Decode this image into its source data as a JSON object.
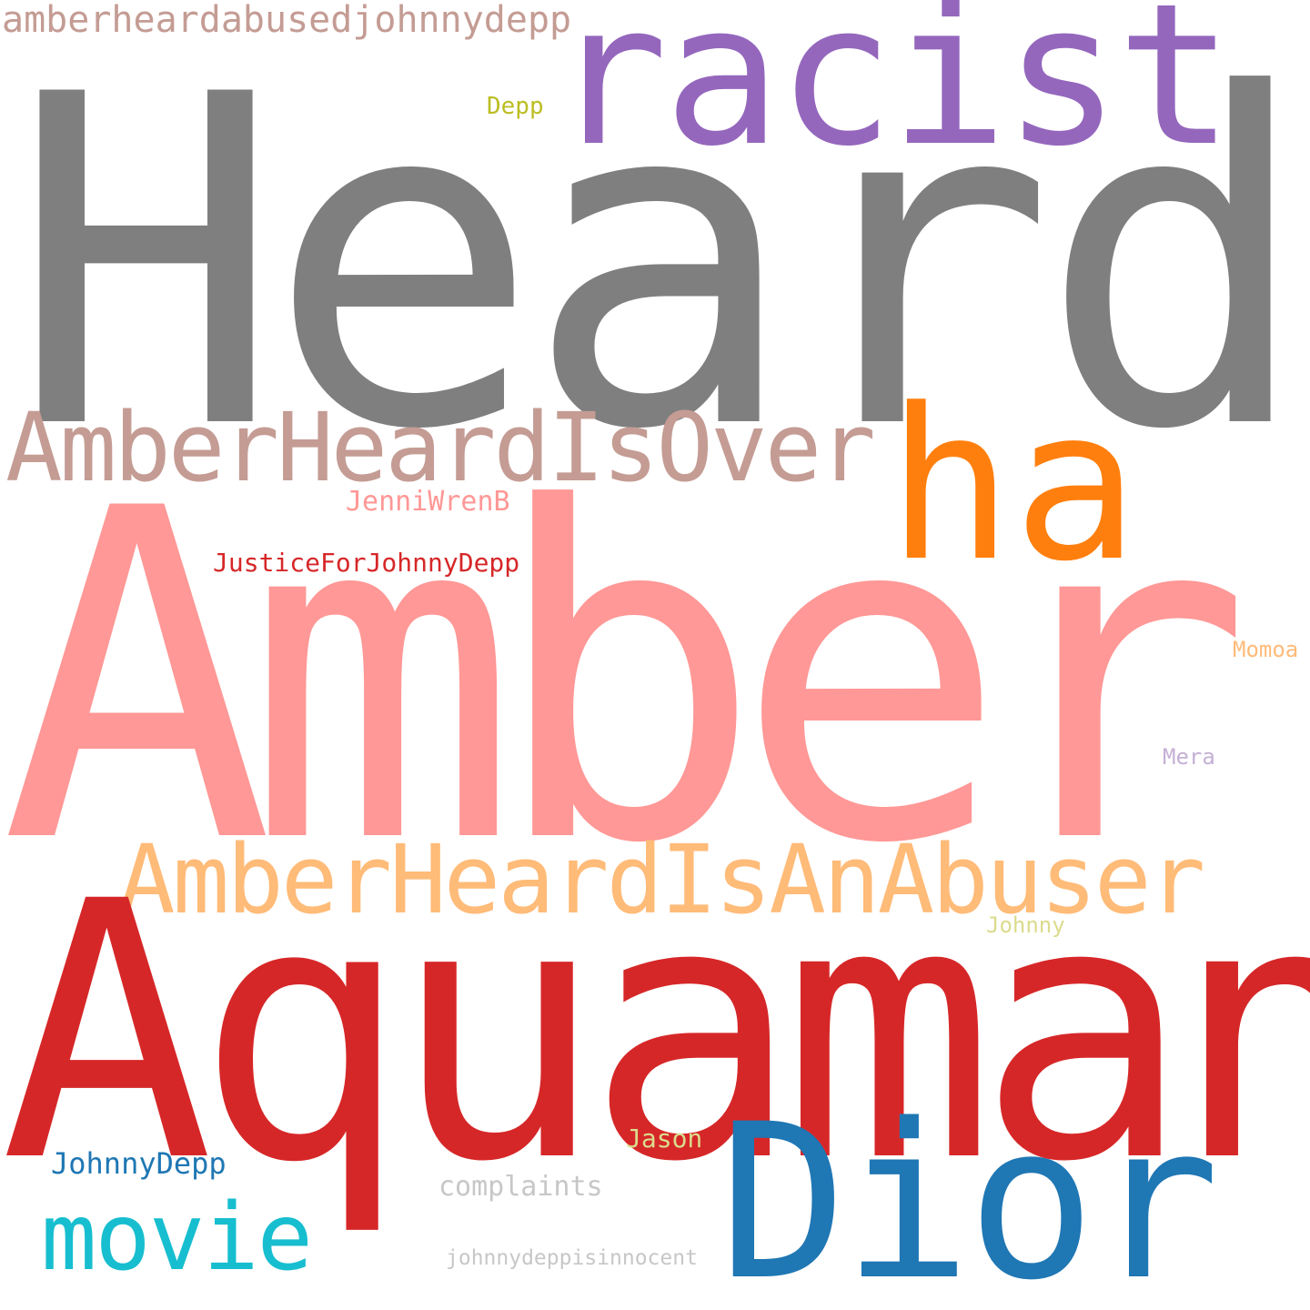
{
  "cloud": {
    "words": [
      {
        "id": "heard",
        "text": "Heard",
        "color": "#7f7f7f"
      },
      {
        "id": "racist",
        "text": "racist",
        "color": "#9467bd"
      },
      {
        "id": "amberheardabusedjohnnydepp",
        "text": "amberheardabusedjohnnydepp",
        "color": "#c49c94"
      },
      {
        "id": "depp",
        "text": "Depp",
        "color": "#bcbd22"
      },
      {
        "id": "amberheardisover",
        "text": "AmberHeardIsOver",
        "color": "#c49c94"
      },
      {
        "id": "ha",
        "text": "ha",
        "color": "#ff7f0e"
      },
      {
        "id": "jenniwrenb",
        "text": "JenniWrenB",
        "color": "#ff9896"
      },
      {
        "id": "justiceforjohnnydepp",
        "text": "JusticeForJohnnyDepp",
        "color": "#d62728"
      },
      {
        "id": "amber",
        "text": "Amber",
        "color": "#ff9896"
      },
      {
        "id": "momoa",
        "text": "Momoa",
        "color": "#ffbb78"
      },
      {
        "id": "mera",
        "text": "Mera",
        "color": "#c5b0d5"
      },
      {
        "id": "amberheardisanabuser",
        "text": "AmberHeardIsAnAbuser",
        "color": "#ffbb78"
      },
      {
        "id": "johnny",
        "text": "Johnny",
        "color": "#dbdb8d"
      },
      {
        "id": "aquaman",
        "text": "Aquaman",
        "color": "#d62728"
      },
      {
        "id": "jason",
        "text": "Jason",
        "color": "#dbdb8d"
      },
      {
        "id": "johnnydepp",
        "text": "JohnnyDepp",
        "color": "#1f77b4"
      },
      {
        "id": "complaints",
        "text": "complaints",
        "color": "#c7c7c7"
      },
      {
        "id": "dior",
        "text": "Dior",
        "color": "#1f77b4"
      },
      {
        "id": "movie",
        "text": "movie",
        "color": "#17becf"
      },
      {
        "id": "johnnydeppisinnocent",
        "text": "johnnydeppisinnocent",
        "color": "#c7c7c7"
      }
    ]
  }
}
